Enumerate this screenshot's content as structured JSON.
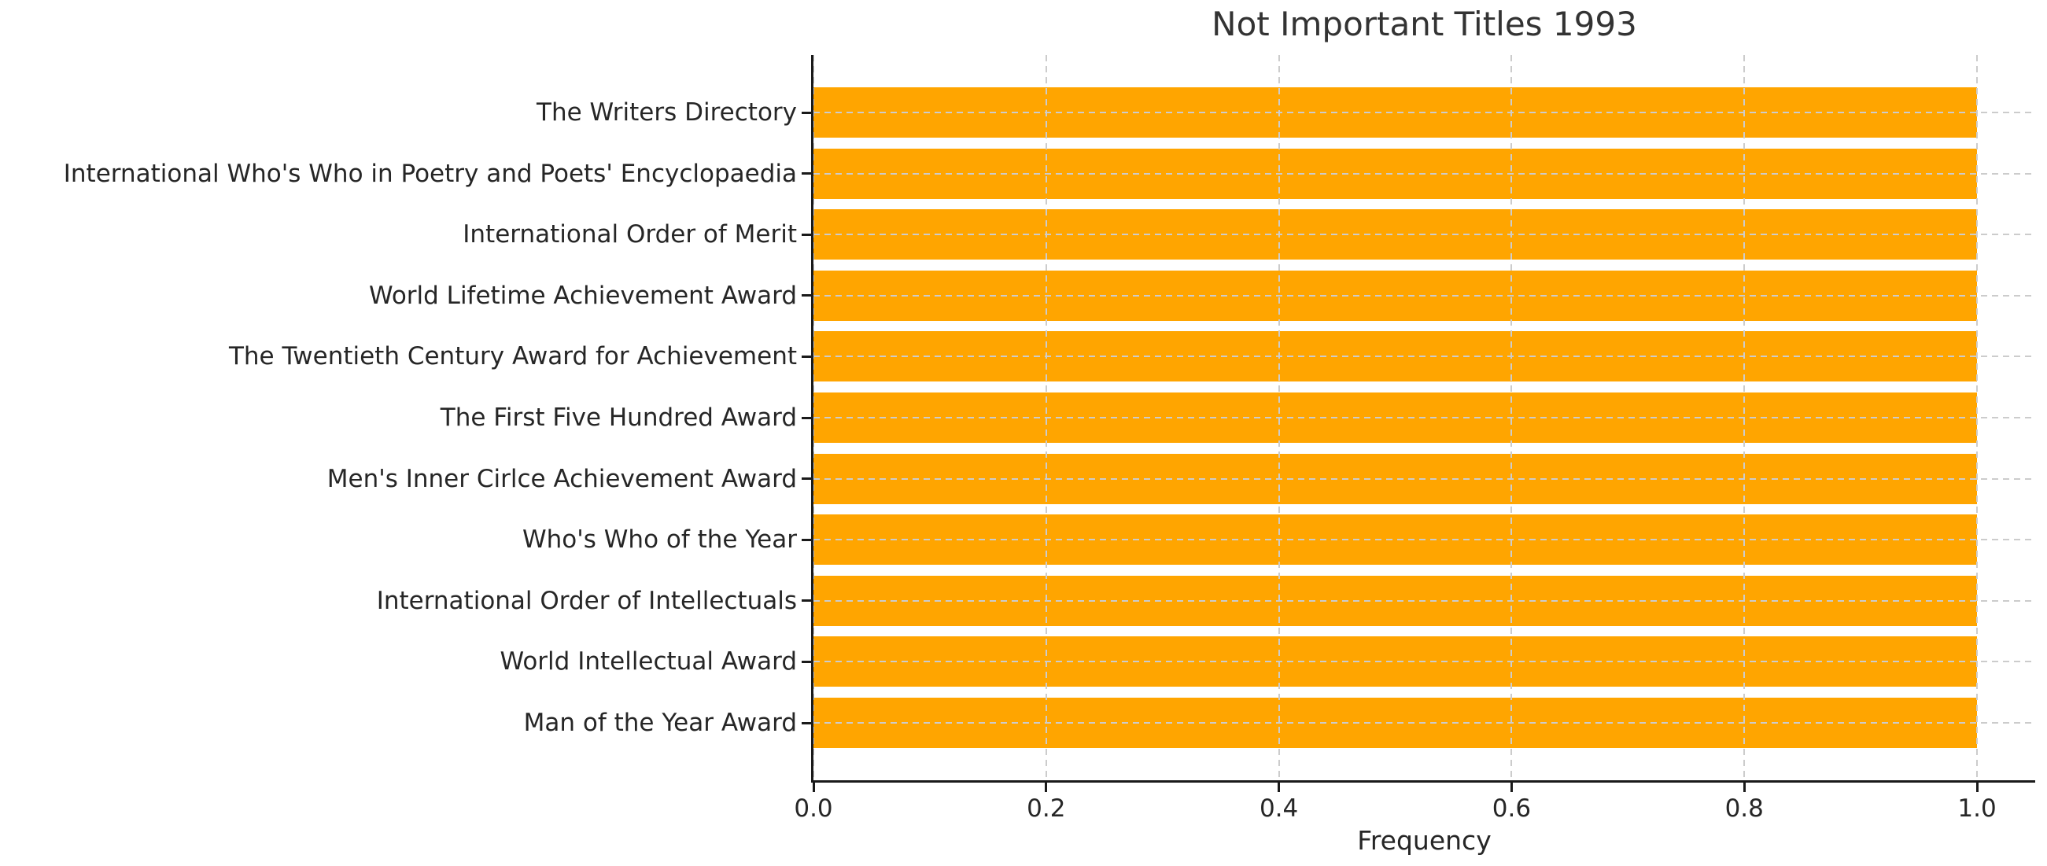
{
  "chart_data": {
    "type": "bar",
    "orientation": "horizontal",
    "title": "Not Important Titles 1993",
    "xlabel": "Frequency",
    "ylabel": "",
    "categories": [
      "The Writers Directory",
      "International Who's Who in Poetry and Poets' Encyclopaedia",
      "International Order of Merit",
      "World Lifetime Achievement Award",
      "The Twentieth Century Award for Achievement",
      "The First Five Hundred Award",
      "Men's Inner Cirlce Achievement Award",
      "Who's Who of the Year",
      "International Order of Intellectuals",
      "World Intellectual Award",
      "Man of the Year Award"
    ],
    "values": [
      1.0,
      1.0,
      1.0,
      1.0,
      1.0,
      1.0,
      1.0,
      1.0,
      1.0,
      1.0,
      1.0
    ],
    "x_ticks": [
      0.0,
      0.2,
      0.4,
      0.6,
      0.8,
      1.0
    ],
    "x_tick_labels": [
      "0.0",
      "0.2",
      "0.4",
      "0.6",
      "0.8",
      "1.0"
    ],
    "xlim": [
      0,
      1.05
    ],
    "grid": "dashed, drawn above bars, vertical at x ticks and horizontal at bar centers",
    "legend": false,
    "colors": {
      "bar": "#FFA500",
      "grid": "#cccccc",
      "text": "#262626",
      "title": "#333333",
      "spine": "#1a1a1a",
      "background": "#ffffff"
    }
  }
}
